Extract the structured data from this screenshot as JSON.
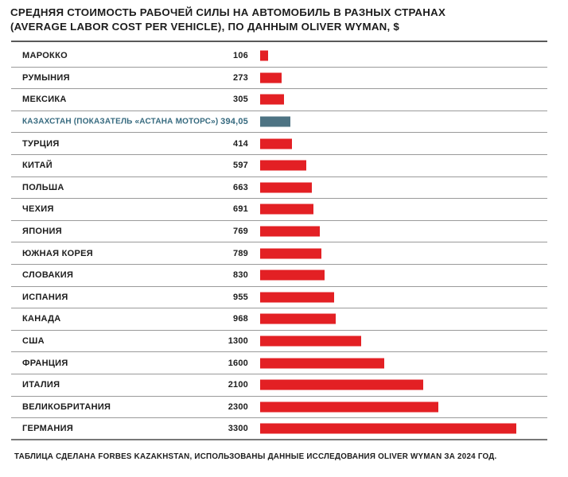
{
  "title": {
    "line1": "СРЕДНЯЯ СТОИМОСТЬ РАБОЧЕЙ СИЛЫ НА АВТОМОБИЛЬ В РАЗНЫХ СТРАНАХ",
    "line2": "(AVERAGE LABOR COST PER VEHICLE), ПО ДАННЫМ OLIVER WYMAN, $"
  },
  "footer": {
    "source_note": "ТАБЛИЦА СДЕЛАНА FORBES KAZAKHSTAN, ИСПОЛЬЗОВАНЫ ДАННЫЕ ИССЛЕДОВАНИЯ OLIVER WYMAN ЗА 2024 ГОД."
  },
  "colors": {
    "bar_default": "#e32024",
    "bar_highlight": "#4d7383",
    "highlight_text": "#35697e",
    "text": "#1c1c1c",
    "row_line": "#9a9a9a",
    "title_line": "#595959",
    "bottom_line": "#787878"
  },
  "chart_data": {
    "type": "bar",
    "orientation": "horizontal",
    "title": "СРЕДНЯЯ СТОИМОСТЬ РАБОЧЕЙ СИЛЫ НА АВТОМОБИЛЬ В РАЗНЫХ СТРАНАХ (AVERAGE LABOR COST PER VEHICLE), ПО ДАННЫМ OLIVER WYMAN, $",
    "unit": "$",
    "xlim": [
      0,
      3300
    ],
    "grid": false,
    "legend": false,
    "rows": [
      {
        "label": "МАРОККО",
        "value": 106,
        "value_display": "106",
        "highlight": false
      },
      {
        "label": "РУМЫНИЯ",
        "value": 273,
        "value_display": "273",
        "highlight": false
      },
      {
        "label": "МЕКСИКА",
        "value": 305,
        "value_display": "305",
        "highlight": false
      },
      {
        "label": "КАЗАХСТАН (ПОКАЗАТЕЛЬ «АСТАНА МОТОРС»)",
        "value": 394.05,
        "value_display": "394,05",
        "highlight": true
      },
      {
        "label": "ТУРЦИЯ",
        "value": 414,
        "value_display": "414",
        "highlight": false
      },
      {
        "label": "КИТАЙ",
        "value": 597,
        "value_display": "597",
        "highlight": false
      },
      {
        "label": "ПОЛЬША",
        "value": 663,
        "value_display": "663",
        "highlight": false
      },
      {
        "label": "ЧЕХИЯ",
        "value": 691,
        "value_display": "691",
        "highlight": false
      },
      {
        "label": "ЯПОНИЯ",
        "value": 769,
        "value_display": "769",
        "highlight": false
      },
      {
        "label": "ЮЖНАЯ КОРЕЯ",
        "value": 789,
        "value_display": "789",
        "highlight": false
      },
      {
        "label": "СЛОВАКИЯ",
        "value": 830,
        "value_display": "830",
        "highlight": false
      },
      {
        "label": "ИСПАНИЯ",
        "value": 955,
        "value_display": "955",
        "highlight": false
      },
      {
        "label": "КАНАДА",
        "value": 968,
        "value_display": "968",
        "highlight": false
      },
      {
        "label": "США",
        "value": 1300,
        "value_display": "1300",
        "highlight": false
      },
      {
        "label": "ФРАНЦИЯ",
        "value": 1600,
        "value_display": "1600",
        "highlight": false
      },
      {
        "label": "ИТАЛИЯ",
        "value": 2100,
        "value_display": "2100",
        "highlight": false
      },
      {
        "label": "ВЕЛИКОБРИТАНИЯ",
        "value": 2300,
        "value_display": "2300",
        "highlight": false
      },
      {
        "label": "ГЕРМАНИЯ",
        "value": 3300,
        "value_display": "3300",
        "highlight": false
      }
    ]
  }
}
